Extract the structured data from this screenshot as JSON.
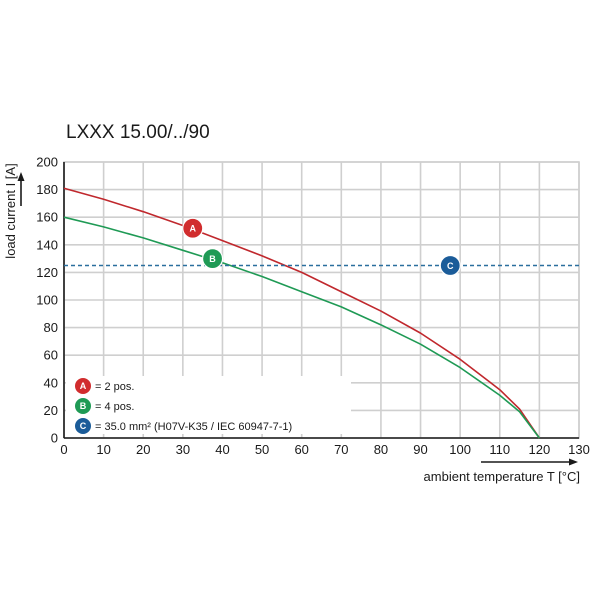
{
  "chart_data": {
    "type": "line",
    "title": "LXXX 15.00/../90",
    "xlabel": "ambient temperature T [°C]",
    "ylabel": "load current I [A]",
    "xlim": [
      0,
      130
    ],
    "ylim": [
      0,
      200
    ],
    "xticks": [
      0,
      10,
      20,
      30,
      40,
      50,
      60,
      70,
      80,
      90,
      100,
      110,
      120,
      130
    ],
    "yticks": [
      0,
      20,
      40,
      60,
      80,
      100,
      120,
      140,
      160,
      180,
      200
    ],
    "grid": true,
    "legend_position": "bottom-left",
    "series": [
      {
        "name": "A",
        "label": "= 2 pos.",
        "color": "#c0282d",
        "x": [
          0,
          10,
          20,
          30,
          40,
          50,
          60,
          70,
          80,
          90,
          100,
          110,
          115,
          120
        ],
        "y": [
          181,
          173,
          164,
          154,
          143,
          132,
          120,
          106,
          92,
          76,
          57,
          35,
          21,
          0
        ]
      },
      {
        "name": "B",
        "label": "= 4 pos.",
        "color": "#1f9a55",
        "x": [
          0,
          10,
          20,
          30,
          40,
          50,
          60,
          70,
          80,
          90,
          100,
          110,
          115,
          120
        ],
        "y": [
          160,
          153,
          145,
          136,
          127,
          117,
          106,
          95,
          82,
          68,
          51,
          31,
          19,
          0
        ]
      },
      {
        "name": "C",
        "label": "= 35.0 mm² (H07V-K35 / IEC 60947-7-1)",
        "color": "#2a6f9e",
        "style": "dashed",
        "x": [
          0,
          130
        ],
        "y": [
          125,
          125
        ]
      }
    ],
    "markers": [
      {
        "letter": "A",
        "x": 32.5,
        "y": 152,
        "color": "#d12d2e"
      },
      {
        "letter": "B",
        "x": 37.5,
        "y": 130,
        "color": "#1f9a55"
      },
      {
        "letter": "C",
        "x": 97.5,
        "y": 125,
        "color": "#1b5c99"
      }
    ]
  }
}
